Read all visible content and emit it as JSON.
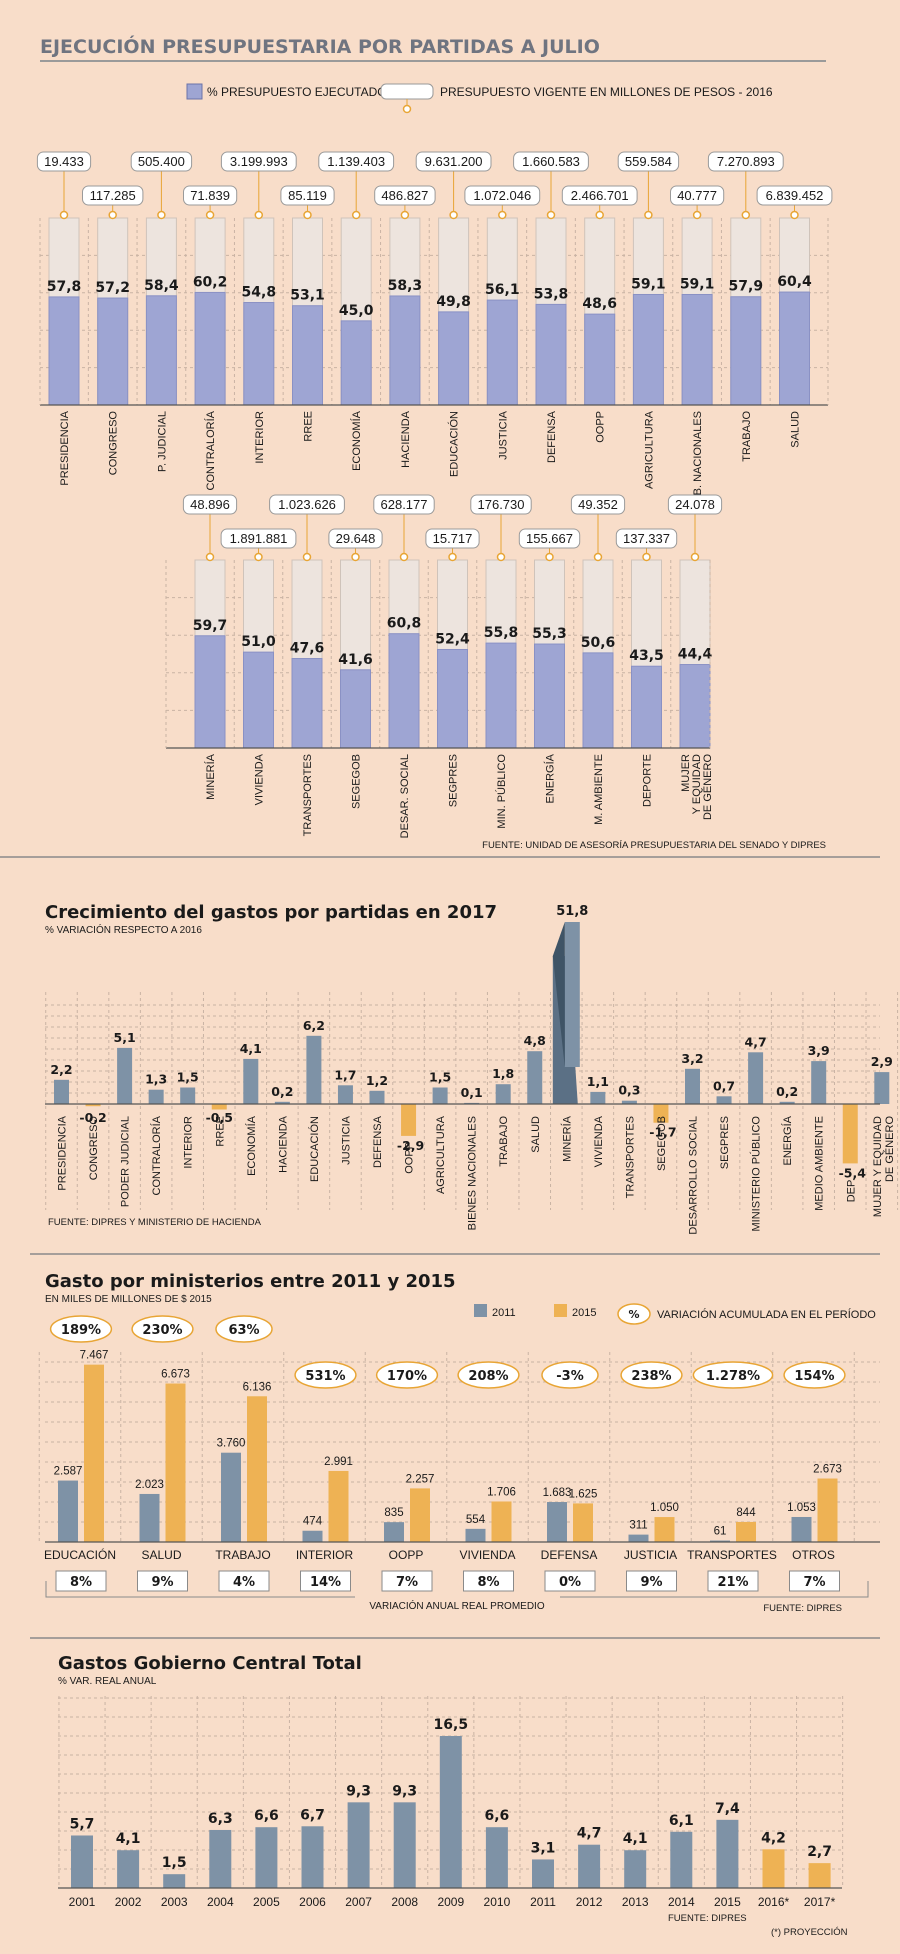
{
  "chart_data": [
    {
      "id": "c1",
      "type": "bar",
      "title": "EJECUCIÓN PRESUPUESTARIA POR PARTIDAS A JULIO",
      "legend": {
        "executed": "% PRESUPUESTO EJECUTADO",
        "budget": "PRESUPUESTO VIGENTE EN MILLONES DE PESOS - 2016"
      },
      "ylim": [
        0,
        100
      ],
      "rows": [
        {
          "categories": [
            "PRESIDENCIA",
            "CONGRESO",
            "P. JUDICIAL",
            "CONTRALORÍA",
            "INTERIOR",
            "RREE",
            "ECONOMÍA",
            "HACIENDA",
            "EDUCACIÓN",
            "JUSTICIA",
            "DEFENSA",
            "OOPP",
            "AGRICULTURA",
            "B. NACIONALES",
            "TRABAJO",
            "SALUD"
          ],
          "percent_executed": [
            "57,8",
            "57,2",
            "58,4",
            "60,2",
            "54,8",
            "53,1",
            "45,0",
            "58,3",
            "49,8",
            "56,1",
            "53,8",
            "48,6",
            "59,1",
            "59,1",
            "57,9",
            "60,4"
          ],
          "budget": [
            "19.433",
            "117.285",
            "505.400",
            "71.839",
            "3.199.993",
            "85.119",
            "1.139.403",
            "486.827",
            "9.631.200",
            "1.072.046",
            "1.660.583",
            "2.466.701",
            "559.584",
            "40.777",
            "7.270.893",
            "6.839.452"
          ]
        },
        {
          "categories": [
            "MINERÍA",
            "VIVIENDA",
            "TRANSPORTES",
            "SEGEGOB",
            "DESAR. SOCIAL",
            "SEGPRES",
            "MIN. PÚBLICO",
            "ENERGÍA",
            "M. AMBIENTE",
            "DEPORTE",
            "MUJER Y EQUIDAD DE GÉNERO"
          ],
          "percent_executed": [
            "59,7",
            "51,0",
            "47,6",
            "41,6",
            "60,8",
            "52,4",
            "55,8",
            "55,3",
            "50,6",
            "43,5",
            "44,4"
          ],
          "budget": [
            "48.896",
            "1.891.881",
            "1.023.626",
            "29.648",
            "628.177",
            "15.717",
            "176.730",
            "155.667",
            "49.352",
            "137.337",
            "24.078"
          ]
        }
      ],
      "source": "FUENTE: UNIDAD DE ASESORÍA PRESUPUESTARIA DEL SENADO Y DIPRES"
    },
    {
      "id": "c2",
      "type": "bar",
      "title": "Crecimiento del gastos por partidas en 2017",
      "subtitle": "% VARIACIÓN RESPECTO A 2016",
      "categories": [
        "PRESIDENCIA",
        "CONGRESO",
        "PODER JUDICIAL",
        "CONTRALORÍA",
        "INTERIOR",
        "RREE",
        "ECONOMÍA",
        "HACIENDA",
        "EDUCACIÓN",
        "JUSTICIA",
        "DEFENSA",
        "OOPP",
        "AGRICULTURA",
        "BIENES NACIONALES",
        "TRABAJO",
        "SALUD",
        "MINERÍA",
        "VIVIENDA",
        "TRANSPORTES",
        "SEGEGOB",
        "DESARROLLO SOCIAL",
        "SEGPRES",
        "MINISTERIO PÚBLICO",
        "ENERGÍA",
        "MEDIO AMBIENTE",
        "DEP.",
        "MUJER Y EQUIDAD DE GÉNERO"
      ],
      "labels": [
        "2,2",
        "-0,2",
        "5,1",
        "1,3",
        "1,5",
        "-0,5",
        "4,1",
        "0,2",
        "6,2",
        "1,7",
        "1,2",
        "-2,9",
        "1,5",
        "0,1",
        "1,8",
        "4,8",
        "51,8",
        "1,1",
        "0,3",
        "-1,7",
        "3,2",
        "0,7",
        "4,7",
        "0,2",
        "3,9",
        "-5,4",
        "2,9"
      ],
      "values": [
        2.2,
        -0.2,
        5.1,
        1.3,
        1.5,
        -0.5,
        4.1,
        0.2,
        6.2,
        1.7,
        1.2,
        -2.9,
        1.5,
        0.1,
        1.8,
        4.8,
        51.8,
        1.1,
        0.3,
        -1.7,
        3.2,
        0.7,
        4.7,
        0.2,
        3.9,
        -5.4,
        2.9
      ],
      "source": "FUENTE: DIPRES Y MINISTERIO DE HACIENDA"
    },
    {
      "id": "c3",
      "type": "bar",
      "title": "Gasto por ministerios entre 2011 y 2015",
      "subtitle": "EN MILES DE MILLONES DE $ 2015",
      "legend": {
        "y2011": "2011",
        "y2015": "2015",
        "pct_symbol": "%",
        "pct_label": "VARIACIÓN ACUMULADA EN EL PERÍODO"
      },
      "categories": [
        "EDUCACIÓN",
        "SALUD",
        "TRABAJO",
        "INTERIOR",
        "OOPP",
        "VIVIENDA",
        "DEFENSA",
        "JUSTICIA",
        "TRANSPORTES",
        "OTROS"
      ],
      "labels_2011": [
        "2.587",
        "2.023",
        "3.760",
        "474",
        "835",
        "554",
        "1.683",
        "311",
        "61",
        "1.053"
      ],
      "labels_2015": [
        "7.467",
        "6.673",
        "6.136",
        "2.991",
        "2.257",
        "1.706",
        "1.625",
        "1.050",
        "844",
        "2.673"
      ],
      "values_2011": [
        2587,
        2023,
        3760,
        474,
        835,
        554,
        1683,
        311,
        61,
        1053
      ],
      "values_2015": [
        7467,
        6673,
        6136,
        2991,
        2257,
        1706,
        1625,
        1050,
        844,
        2673
      ],
      "cumulative_variation": [
        "189%",
        "230%",
        "63%",
        "531%",
        "170%",
        "208%",
        "-3%",
        "238%",
        "1.278%",
        "154%"
      ],
      "annual_real_variation": [
        "8%",
        "9%",
        "4%",
        "14%",
        "7%",
        "8%",
        "0%",
        "9%",
        "21%",
        "7%"
      ],
      "annual_label": "VARIACIÓN ANUAL REAL PROMEDIO",
      "source": "FUENTE: DIPRES",
      "ylim": [
        0,
        8000
      ]
    },
    {
      "id": "c4",
      "type": "bar",
      "title": "Gastos Gobierno Central Total",
      "subtitle": "% VAR. REAL ANUAL",
      "categories": [
        "2001",
        "2002",
        "2003",
        "2004",
        "2005",
        "2006",
        "2007",
        "2008",
        "2009",
        "2010",
        "2011",
        "2012",
        "2013",
        "2014",
        "2015",
        "2016*",
        "2017*"
      ],
      "labels": [
        "5,7",
        "4,1",
        "1,5",
        "6,3",
        "6,6",
        "6,7",
        "9,3",
        "9,3",
        "16,5",
        "6,6",
        "3,1",
        "4,7",
        "4,1",
        "6,1",
        "7,4",
        "4,2",
        "2,7"
      ],
      "values": [
        5.7,
        4.1,
        1.5,
        6.3,
        6.6,
        6.7,
        9.3,
        9.3,
        16.5,
        6.6,
        3.1,
        4.7,
        4.1,
        6.1,
        7.4,
        4.2,
        2.7
      ],
      "projected": [
        false,
        false,
        false,
        false,
        false,
        false,
        false,
        false,
        false,
        false,
        false,
        false,
        false,
        false,
        false,
        true,
        true
      ],
      "source": "FUENTE: DIPRES",
      "note": "(*) PROYECCIÓN",
      "ylim": [
        0,
        18
      ]
    }
  ],
  "colors": {
    "background": "#f8ddc9",
    "purple": "#9ea5d3",
    "pale": "#ede4de",
    "slate": "#7e92a6",
    "orange": "#eeb254",
    "text": "#1a1a1a",
    "rule": "#8a8a8a"
  }
}
